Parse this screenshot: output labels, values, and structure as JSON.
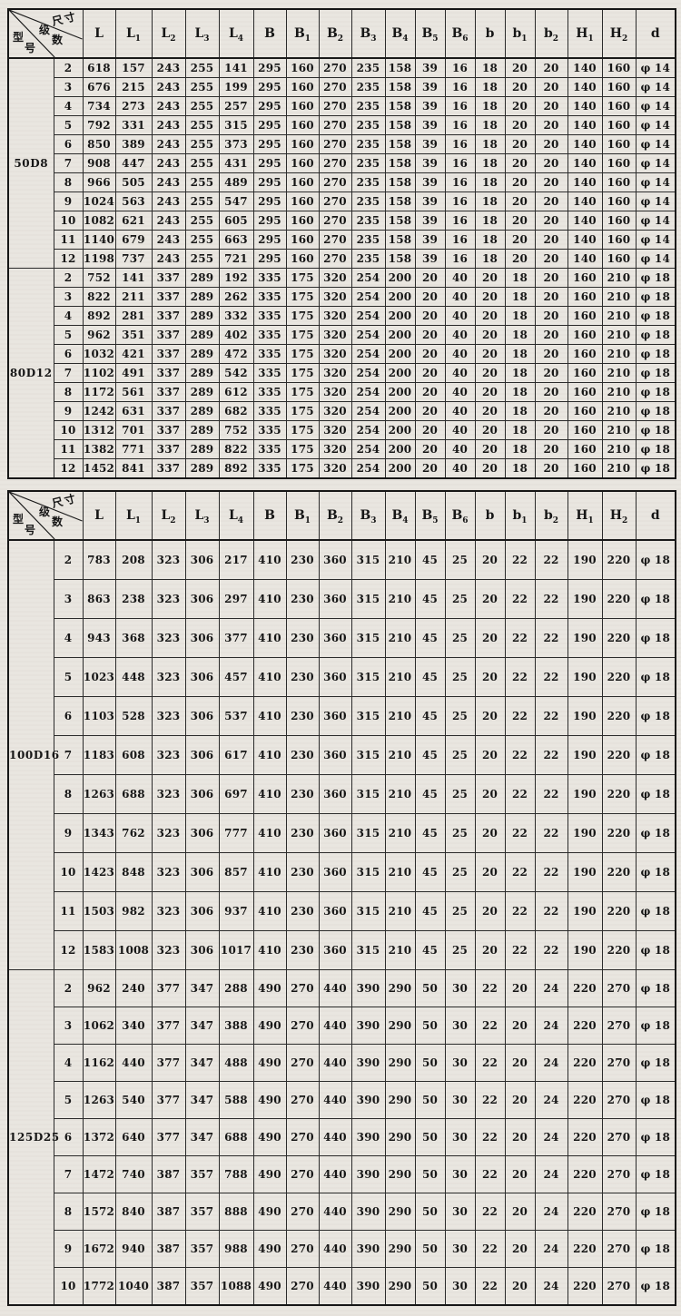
{
  "page": {
    "background_color": "#e9e6e0",
    "border_color": "#161616",
    "text_color": "#161616"
  },
  "corner": {
    "size_label": "尺寸",
    "stage_char_1": "级",
    "stage_char_2": "数",
    "model_char_1": "型",
    "model_char_2": "号"
  },
  "columns": [
    "L",
    "L1",
    "L2",
    "L3",
    "L4",
    "B",
    "B1",
    "B2",
    "B3",
    "B4",
    "B5",
    "B6",
    "b",
    "b1",
    "b2",
    "H1",
    "H2",
    "d"
  ],
  "tables": [
    {
      "sections": [
        {
          "model": "50D8",
          "rows": [
            [
              "2",
              "618",
              "157",
              "243",
              "255",
              "141",
              "295",
              "160",
              "270",
              "235",
              "158",
              "39",
              "16",
              "18",
              "20",
              "20",
              "140",
              "160",
              "φ 14"
            ],
            [
              "3",
              "676",
              "215",
              "243",
              "255",
              "199",
              "295",
              "160",
              "270",
              "235",
              "158",
              "39",
              "16",
              "18",
              "20",
              "20",
              "140",
              "160",
              "φ 14"
            ],
            [
              "4",
              "734",
              "273",
              "243",
              "255",
              "257",
              "295",
              "160",
              "270",
              "235",
              "158",
              "39",
              "16",
              "18",
              "20",
              "20",
              "140",
              "160",
              "φ 14"
            ],
            [
              "5",
              "792",
              "331",
              "243",
              "255",
              "315",
              "295",
              "160",
              "270",
              "235",
              "158",
              "39",
              "16",
              "18",
              "20",
              "20",
              "140",
              "160",
              "φ 14"
            ],
            [
              "6",
              "850",
              "389",
              "243",
              "255",
              "373",
              "295",
              "160",
              "270",
              "235",
              "158",
              "39",
              "16",
              "18",
              "20",
              "20",
              "140",
              "160",
              "φ 14"
            ],
            [
              "7",
              "908",
              "447",
              "243",
              "255",
              "431",
              "295",
              "160",
              "270",
              "235",
              "158",
              "39",
              "16",
              "18",
              "20",
              "20",
              "140",
              "160",
              "φ 14"
            ],
            [
              "8",
              "966",
              "505",
              "243",
              "255",
              "489",
              "295",
              "160",
              "270",
              "235",
              "158",
              "39",
              "16",
              "18",
              "20",
              "20",
              "140",
              "160",
              "φ 14"
            ],
            [
              "9",
              "1024",
              "563",
              "243",
              "255",
              "547",
              "295",
              "160",
              "270",
              "235",
              "158",
              "39",
              "16",
              "18",
              "20",
              "20",
              "140",
              "160",
              "φ 14"
            ],
            [
              "10",
              "1082",
              "621",
              "243",
              "255",
              "605",
              "295",
              "160",
              "270",
              "235",
              "158",
              "39",
              "16",
              "18",
              "20",
              "20",
              "140",
              "160",
              "φ 14"
            ],
            [
              "11",
              "1140",
              "679",
              "243",
              "255",
              "663",
              "295",
              "160",
              "270",
              "235",
              "158",
              "39",
              "16",
              "18",
              "20",
              "20",
              "140",
              "160",
              "φ 14"
            ],
            [
              "12",
              "1198",
              "737",
              "243",
              "255",
              "721",
              "295",
              "160",
              "270",
              "235",
              "158",
              "39",
              "16",
              "18",
              "20",
              "20",
              "140",
              "160",
              "φ 14"
            ]
          ]
        },
        {
          "model": "80D12",
          "rows": [
            [
              "2",
              "752",
              "141",
              "337",
              "289",
              "192",
              "335",
              "175",
              "320",
              "254",
              "200",
              "20",
              "40",
              "20",
              "18",
              "20",
              "160",
              "210",
              "φ 18"
            ],
            [
              "3",
              "822",
              "211",
              "337",
              "289",
              "262",
              "335",
              "175",
              "320",
              "254",
              "200",
              "20",
              "40",
              "20",
              "18",
              "20",
              "160",
              "210",
              "φ 18"
            ],
            [
              "4",
              "892",
              "281",
              "337",
              "289",
              "332",
              "335",
              "175",
              "320",
              "254",
              "200",
              "20",
              "40",
              "20",
              "18",
              "20",
              "160",
              "210",
              "φ 18"
            ],
            [
              "5",
              "962",
              "351",
              "337",
              "289",
              "402",
              "335",
              "175",
              "320",
              "254",
              "200",
              "20",
              "40",
              "20",
              "18",
              "20",
              "160",
              "210",
              "φ 18"
            ],
            [
              "6",
              "1032",
              "421",
              "337",
              "289",
              "472",
              "335",
              "175",
              "320",
              "254",
              "200",
              "20",
              "40",
              "20",
              "18",
              "20",
              "160",
              "210",
              "φ 18"
            ],
            [
              "7",
              "1102",
              "491",
              "337",
              "289",
              "542",
              "335",
              "175",
              "320",
              "254",
              "200",
              "20",
              "40",
              "20",
              "18",
              "20",
              "160",
              "210",
              "φ 18"
            ],
            [
              "8",
              "1172",
              "561",
              "337",
              "289",
              "612",
              "335",
              "175",
              "320",
              "254",
              "200",
              "20",
              "40",
              "20",
              "18",
              "20",
              "160",
              "210",
              "φ 18"
            ],
            [
              "9",
              "1242",
              "631",
              "337",
              "289",
              "682",
              "335",
              "175",
              "320",
              "254",
              "200",
              "20",
              "40",
              "20",
              "18",
              "20",
              "160",
              "210",
              "φ 18"
            ],
            [
              "10",
              "1312",
              "701",
              "337",
              "289",
              "752",
              "335",
              "175",
              "320",
              "254",
              "200",
              "20",
              "40",
              "20",
              "18",
              "20",
              "160",
              "210",
              "φ 18"
            ],
            [
              "11",
              "1382",
              "771",
              "337",
              "289",
              "822",
              "335",
              "175",
              "320",
              "254",
              "200",
              "20",
              "40",
              "20",
              "18",
              "20",
              "160",
              "210",
              "φ 18"
            ],
            [
              "12",
              "1452",
              "841",
              "337",
              "289",
              "892",
              "335",
              "175",
              "320",
              "254",
              "200",
              "20",
              "40",
              "20",
              "18",
              "20",
              "160",
              "210",
              "φ 18"
            ]
          ]
        }
      ]
    },
    {
      "sections": [
        {
          "model": "100D16",
          "rows": [
            [
              "2",
              "783",
              "208",
              "323",
              "306",
              "217",
              "410",
              "230",
              "360",
              "315",
              "210",
              "45",
              "25",
              "20",
              "22",
              "22",
              "190",
              "220",
              "φ 18"
            ],
            [
              "3",
              "863",
              "238",
              "323",
              "306",
              "297",
              "410",
              "230",
              "360",
              "315",
              "210",
              "45",
              "25",
              "20",
              "22",
              "22",
              "190",
              "220",
              "φ 18"
            ],
            [
              "4",
              "943",
              "368",
              "323",
              "306",
              "377",
              "410",
              "230",
              "360",
              "315",
              "210",
              "45",
              "25",
              "20",
              "22",
              "22",
              "190",
              "220",
              "φ 18"
            ],
            [
              "5",
              "1023",
              "448",
              "323",
              "306",
              "457",
              "410",
              "230",
              "360",
              "315",
              "210",
              "45",
              "25",
              "20",
              "22",
              "22",
              "190",
              "220",
              "φ 18"
            ],
            [
              "6",
              "1103",
              "528",
              "323",
              "306",
              "537",
              "410",
              "230",
              "360",
              "315",
              "210",
              "45",
              "25",
              "20",
              "22",
              "22",
              "190",
              "220",
              "φ 18"
            ],
            [
              "7",
              "1183",
              "608",
              "323",
              "306",
              "617",
              "410",
              "230",
              "360",
              "315",
              "210",
              "45",
              "25",
              "20",
              "22",
              "22",
              "190",
              "220",
              "φ 18"
            ],
            [
              "8",
              "1263",
              "688",
              "323",
              "306",
              "697",
              "410",
              "230",
              "360",
              "315",
              "210",
              "45",
              "25",
              "20",
              "22",
              "22",
              "190",
              "220",
              "φ 18"
            ],
            [
              "9",
              "1343",
              "762",
              "323",
              "306",
              "777",
              "410",
              "230",
              "360",
              "315",
              "210",
              "45",
              "25",
              "20",
              "22",
              "22",
              "190",
              "220",
              "φ 18"
            ],
            [
              "10",
              "1423",
              "848",
              "323",
              "306",
              "857",
              "410",
              "230",
              "360",
              "315",
              "210",
              "45",
              "25",
              "20",
              "22",
              "22",
              "190",
              "220",
              "φ 18"
            ],
            [
              "11",
              "1503",
              "982",
              "323",
              "306",
              "937",
              "410",
              "230",
              "360",
              "315",
              "210",
              "45",
              "25",
              "20",
              "22",
              "22",
              "190",
              "220",
              "φ 18"
            ],
            [
              "12",
              "1583",
              "1008",
              "323",
              "306",
              "1017",
              "410",
              "230",
              "360",
              "315",
              "210",
              "45",
              "25",
              "20",
              "22",
              "22",
              "190",
              "220",
              "φ 18"
            ]
          ]
        },
        {
          "model": "125D25",
          "rows": [
            [
              "2",
              "962",
              "240",
              "377",
              "347",
              "288",
              "490",
              "270",
              "440",
              "390",
              "290",
              "50",
              "30",
              "22",
              "20",
              "24",
              "220",
              "270",
              "φ 18"
            ],
            [
              "3",
              "1062",
              "340",
              "377",
              "347",
              "388",
              "490",
              "270",
              "440",
              "390",
              "290",
              "50",
              "30",
              "22",
              "20",
              "24",
              "220",
              "270",
              "φ 18"
            ],
            [
              "4",
              "1162",
              "440",
              "377",
              "347",
              "488",
              "490",
              "270",
              "440",
              "390",
              "290",
              "50",
              "30",
              "22",
              "20",
              "24",
              "220",
              "270",
              "φ 18"
            ],
            [
              "5",
              "1263",
              "540",
              "377",
              "347",
              "588",
              "490",
              "270",
              "440",
              "390",
              "290",
              "50",
              "30",
              "22",
              "20",
              "24",
              "220",
              "270",
              "φ 18"
            ],
            [
              "6",
              "1372",
              "640",
              "377",
              "347",
              "688",
              "490",
              "270",
              "440",
              "390",
              "290",
              "50",
              "30",
              "22",
              "20",
              "24",
              "220",
              "270",
              "φ 18"
            ],
            [
              "7",
              "1472",
              "740",
              "387",
              "357",
              "788",
              "490",
              "270",
              "440",
              "390",
              "290",
              "50",
              "30",
              "22",
              "20",
              "24",
              "220",
              "270",
              "φ 18"
            ],
            [
              "8",
              "1572",
              "840",
              "387",
              "357",
              "888",
              "490",
              "270",
              "440",
              "390",
              "290",
              "50",
              "30",
              "22",
              "20",
              "24",
              "220",
              "270",
              "φ 18"
            ],
            [
              "9",
              "1672",
              "940",
              "387",
              "357",
              "988",
              "490",
              "270",
              "440",
              "390",
              "290",
              "50",
              "30",
              "22",
              "20",
              "24",
              "220",
              "270",
              "φ 18"
            ],
            [
              "10",
              "1772",
              "1040",
              "387",
              "357",
              "1088",
              "490",
              "270",
              "440",
              "390",
              "290",
              "50",
              "30",
              "22",
              "20",
              "24",
              "220",
              "270",
              "φ 18"
            ]
          ]
        }
      ]
    }
  ]
}
